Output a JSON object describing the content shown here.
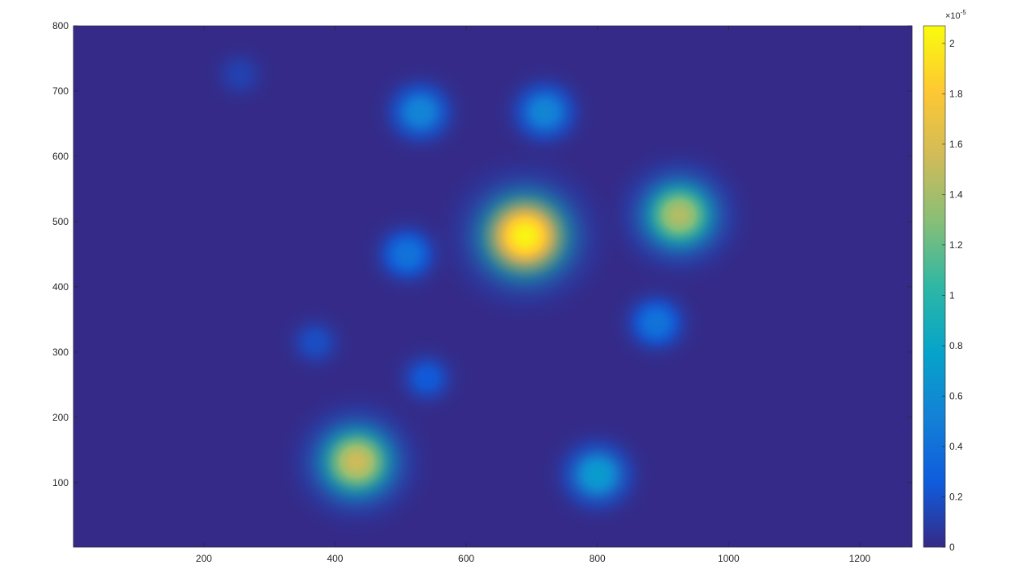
{
  "chart_data": {
    "type": "heatmap",
    "title": "",
    "xlabel": "",
    "ylabel": "",
    "xlim": [
      1,
      1280
    ],
    "ylim": [
      1,
      800
    ],
    "x_ticks": [
      "200",
      "400",
      "600",
      "800",
      "1000",
      "1200"
    ],
    "y_ticks": [
      "100",
      "200",
      "300",
      "400",
      "500",
      "600",
      "700",
      "800"
    ],
    "colormap": "parula",
    "background_color": "#352a87",
    "colorbar": {
      "range": [
        0,
        2.07
      ],
      "exponent_label": "×10",
      "exponent": "-5",
      "ticks": [
        "0",
        "0.2",
        "0.4",
        "0.6",
        "0.8",
        "1",
        "1.2",
        "1.4",
        "1.6",
        "1.8",
        "2"
      ],
      "stops": [
        "#352a87",
        "#0f5cdd",
        "#1481d6",
        "#06a4ca",
        "#2eb7a4",
        "#87bf77",
        "#d1bb59",
        "#fec832",
        "#f9fb0e"
      ]
    },
    "density_peaks": [
      {
        "x": 690,
        "y": 478,
        "value": 2.05
      },
      {
        "x": 925,
        "y": 510,
        "value": 1.45
      },
      {
        "x": 433,
        "y": 132,
        "value": 1.55
      },
      {
        "x": 800,
        "y": 112,
        "value": 0.72
      },
      {
        "x": 530,
        "y": 668,
        "value": 0.55
      },
      {
        "x": 720,
        "y": 668,
        "value": 0.55
      },
      {
        "x": 510,
        "y": 450,
        "value": 0.42
      },
      {
        "x": 890,
        "y": 345,
        "value": 0.42
      },
      {
        "x": 540,
        "y": 260,
        "value": 0.25
      },
      {
        "x": 370,
        "y": 315,
        "value": 0.18
      },
      {
        "x": 255,
        "y": 725,
        "value": 0.12
      }
    ]
  }
}
